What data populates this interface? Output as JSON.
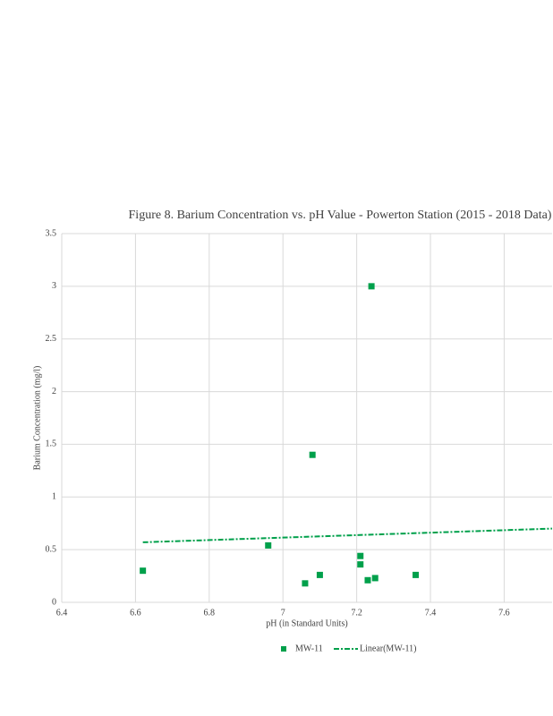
{
  "chart_data": {
    "type": "scatter",
    "title": "Figure 8. Barium Concentration vs. pH Value - Powerton Station (2015 - 2018 Data)",
    "x_label": "pH (in Standard Units)",
    "y_label": "Barium Concentration (mg/l)",
    "xlim": [
      6.4,
      7.73
    ],
    "xticks": [
      6.4,
      6.6,
      6.8,
      7,
      7.2,
      7.4,
      7.6
    ],
    "ylim": [
      0,
      3.5
    ],
    "yticks": [
      0,
      0.5,
      1,
      1.5,
      2,
      2.5,
      3,
      3.5
    ],
    "grid": true,
    "legend": "bottom",
    "series": [
      {
        "name": "MW-11",
        "color": "#00a04b",
        "x": [
          6.62,
          6.96,
          7.06,
          7.08,
          7.1,
          7.21,
          7.21,
          7.23,
          7.24,
          7.25,
          7.36
        ],
        "values": [
          0.3,
          0.54,
          0.18,
          1.4,
          0.26,
          0.44,
          0.36,
          0.21,
          3.0,
          0.23,
          0.26
        ]
      }
    ],
    "trendline": {
      "name": "Linear(MW-11)",
      "color": "#00a04b",
      "x": [
        6.62,
        7.73
      ],
      "values": [
        0.57,
        0.7
      ]
    }
  }
}
